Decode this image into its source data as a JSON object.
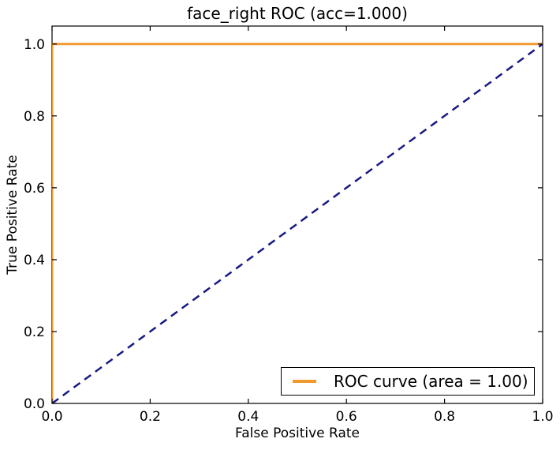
{
  "figure": {
    "background_color": "#FFFFFF",
    "text_color": "#000000",
    "spine_color": "#000000"
  },
  "chart_data": {
    "type": "line",
    "title": "face_right ROC (acc=1.000)",
    "xlabel": "False Positive Rate",
    "ylabel": "True Positive Rate",
    "xlim": [
      0.0,
      1.0
    ],
    "ylim": [
      0.0,
      1.05
    ],
    "grid": false,
    "xtick_values": [
      0.0,
      0.2,
      0.4,
      0.6,
      0.8,
      1.0
    ],
    "xtick_labels": [
      "0.0",
      "0.2",
      "0.4",
      "0.6",
      "0.8",
      "1.0"
    ],
    "ytick_values": [
      0.0,
      0.2,
      0.4,
      0.6,
      0.8,
      1.0
    ],
    "ytick_labels": [
      "0.0",
      "0.2",
      "0.4",
      "0.6",
      "0.8",
      "1.0"
    ],
    "series": [
      {
        "name": "roc-curve",
        "label": "ROC curve (area = 1.00)",
        "x": [
          0.0,
          0.0,
          1.0
        ],
        "y": [
          0.0,
          1.0,
          1.0
        ],
        "color": "#F0992E",
        "line_style": "solid",
        "line_width": 3
      },
      {
        "name": "chance-diagonal",
        "label": "",
        "x": [
          0.0,
          1.0
        ],
        "y": [
          0.0,
          1.0
        ],
        "color": "#191985",
        "line_style": "dashed",
        "line_width": 2.5
      }
    ],
    "legend": {
      "position": "lower-right",
      "entries": [
        {
          "label": "ROC curve (area = 1.00)",
          "color": "#F0992E"
        }
      ]
    }
  }
}
